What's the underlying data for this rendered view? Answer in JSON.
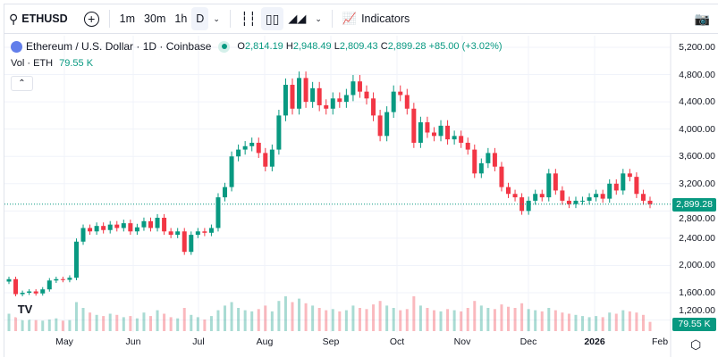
{
  "toolbar": {
    "symbol": "ETHUSD",
    "intervals": [
      "1m",
      "30m",
      "1h",
      "D"
    ],
    "indicators": "Indicators"
  },
  "legend": {
    "title": "Ethereum / U.S. Dollar · 1D · Coinbase",
    "open_label": "O",
    "open": "2,814.19",
    "high_label": "H",
    "high": "2,948.49",
    "low_label": "L",
    "low": "2,809.43",
    "close_label": "C",
    "close": "2,899.28",
    "change": "+85.00 (+3.02%)"
  },
  "volume": {
    "label": "Vol · ETH",
    "value": "79.55 K"
  },
  "price_axis": {
    "ticks": [
      "5,200.00",
      "4,800.00",
      "4,400.00",
      "4,000.00",
      "3,600.00",
      "3,200.00",
      "2,800.00",
      "2,400.00",
      "2,000.00",
      "1,600.00",
      "1,200.00"
    ],
    "current": "2,899.28",
    "volume_badge": "79.55 K"
  },
  "time_axis": {
    "ticks": [
      "May",
      "Jun",
      "Jul",
      "Aug",
      "Sep",
      "Oct",
      "Nov",
      "Dec",
      "2026",
      "Feb"
    ]
  },
  "colors": {
    "up": "#089981",
    "down": "#f23645"
  },
  "chart_data": {
    "type": "candlestick",
    "ylim": [
      1200,
      5200
    ],
    "x_ticks": [
      "May",
      "Jun",
      "Jul",
      "Aug",
      "Sep",
      "Oct",
      "Nov",
      "Dec",
      "2026",
      "Feb"
    ],
    "closes": [
      1800,
      1580,
      1600,
      1620,
      1590,
      1650,
      1780,
      1800,
      1790,
      1820,
      2350,
      2550,
      2500,
      2580,
      2520,
      2600,
      2550,
      2620,
      2500,
      2560,
      2650,
      2550,
      2700,
      2500,
      2450,
      2500,
      2200,
      2450,
      2500,
      2480,
      2550,
      3000,
      3150,
      3600,
      3700,
      3750,
      3800,
      3650,
      3450,
      3700,
      4200,
      4650,
      4300,
      4750,
      4400,
      4600,
      4350,
      4300,
      4450,
      4400,
      4500,
      4700,
      4550,
      4450,
      4200,
      3900,
      4250,
      4550,
      4500,
      4300,
      3800,
      4100,
      3950,
      3900,
      4050,
      3850,
      3900,
      3800,
      3700,
      3350,
      3500,
      3650,
      3450,
      3150,
      3050,
      3000,
      2800,
      2950,
      3050,
      3000,
      3350,
      3100,
      2950,
      2900,
      2950,
      2950,
      3000,
      3050,
      2980,
      3200,
      3100,
      3350,
      3300,
      3050,
      2950,
      2899.28
    ],
    "volumes_k": [
      150,
      120,
      110,
      100,
      95,
      90,
      100,
      110,
      90,
      95,
      250,
      200,
      160,
      140,
      130,
      150,
      140,
      120,
      130,
      110,
      160,
      130,
      180,
      150,
      120,
      110,
      200,
      140,
      120,
      100,
      130,
      180,
      220,
      250,
      200,
      180,
      170,
      190,
      220,
      170,
      260,
      300,
      250,
      280,
      240,
      220,
      200,
      180,
      190,
      170,
      180,
      220,
      200,
      190,
      230,
      260,
      220,
      200,
      180,
      190,
      300,
      220,
      200,
      180,
      170,
      190,
      180,
      170,
      200,
      260,
      220,
      200,
      190,
      230,
      210,
      200,
      240,
      190,
      180,
      170,
      200,
      180,
      160,
      150,
      140,
      130,
      120,
      130,
      120,
      160,
      150,
      180,
      170,
      160,
      140,
      79.55
    ]
  }
}
